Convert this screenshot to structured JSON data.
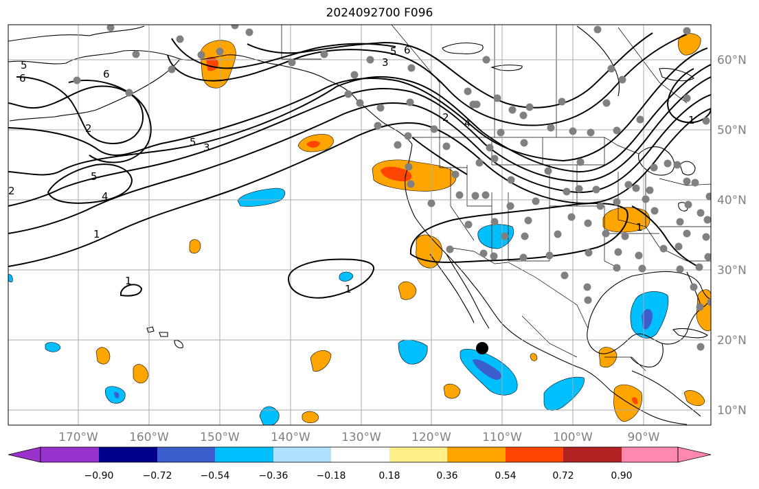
{
  "title": "2024092700 F096",
  "map": {
    "lat_labels": [
      "60°N",
      "50°N",
      "40°N",
      "30°N",
      "20°N",
      "10°N"
    ],
    "lon_labels": [
      "170°W",
      "160°W",
      "150°W",
      "140°W",
      "130°W",
      "120°W",
      "110°W",
      "100°W",
      "90°W"
    ],
    "contour_labels": [
      "5",
      "6",
      "6",
      "2",
      "5",
      "4",
      "1",
      "1",
      "1",
      "5",
      "3",
      "3",
      "5",
      "6",
      "2",
      "4",
      "1",
      "1",
      "2"
    ],
    "colors": {
      "grid": "#aaaaaa",
      "coast": "#000000",
      "station_dot": "#808080"
    }
  },
  "colorbar": {
    "ticks": [
      "−0.90",
      "−0.72",
      "−0.54",
      "−0.36",
      "−0.18",
      "0.18",
      "0.36",
      "0.54",
      "0.72",
      "0.90"
    ],
    "colors": [
      "#9a32cd",
      "#00008b",
      "#3a5fcd",
      "#00bfff",
      "#b0e2ff",
      "#ffffff",
      "#fff08a",
      "#ffa500",
      "#ff4500",
      "#b22222",
      "#ff88b0"
    ]
  }
}
